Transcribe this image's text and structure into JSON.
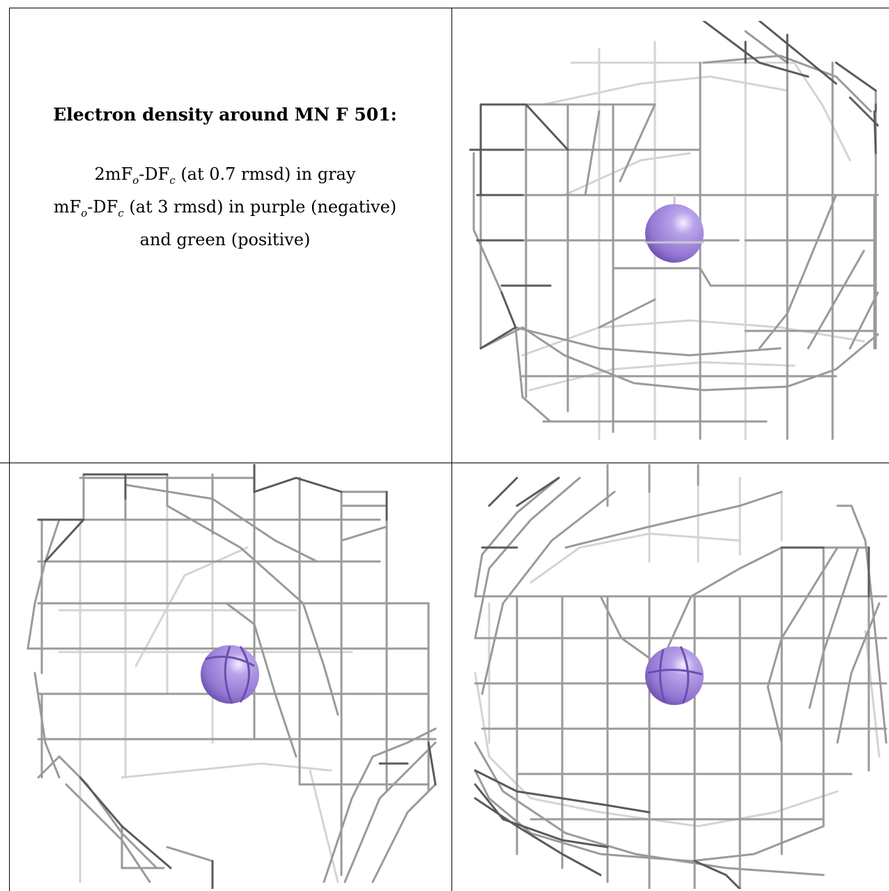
{
  "caption": {
    "title": "Electron density around MN F 501:",
    "line1_prefix": "2mF",
    "line1_sub1": "o",
    "line1_mid": "-DF",
    "line1_sub2": "c",
    "line1_suffix": " (at 0.7 rmsd) in gray",
    "line2_prefix": "mF",
    "line2_sub1": "o",
    "line2_mid": "-DF",
    "line2_sub2": "c",
    "line2_suffix": " (at 3 rmsd) in purple (negative)",
    "line3": "and green (positive)"
  },
  "colors": {
    "atom": "#9b7fd6",
    "atom_dark": "#6f52b3",
    "mesh_dark": "#555555",
    "mesh_mid": "#8a8a8a",
    "mesh_light": "#cfcfcf",
    "border": "#000000"
  },
  "views": [
    {
      "name": "view-top-right",
      "atom": "Mn sphere"
    },
    {
      "name": "view-bottom-left",
      "atom": "Mn sphere"
    },
    {
      "name": "view-bottom-right",
      "atom": "Mn sphere"
    }
  ]
}
